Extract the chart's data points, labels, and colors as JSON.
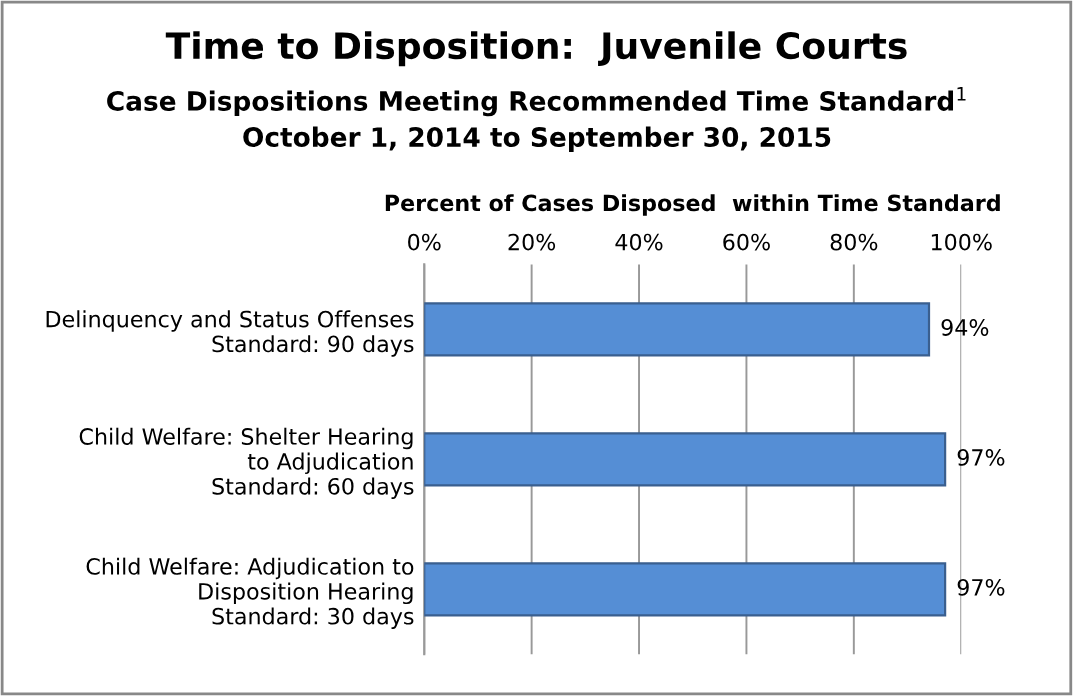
{
  "chart_data": {
    "type": "bar",
    "orientation": "horizontal",
    "title": "Time to Disposition:  Juvenile Courts",
    "subtitle": "Case Dispositions Meeting Recommended Time Standard$^{1}$\nOctober 1, 2014 to September 30, 2015",
    "xlabel": "Percent of Cases Disposed  within Time Standard",
    "categories": [
      "Delinquency and Status Offenses\nStandard: 90 days",
      "Child Welfare: Shelter Hearing\nto Adjudication\nStandard: 60 days",
      "Child Welfare: Adjudication to\nDisposition Hearing\nStandard: 30 days"
    ],
    "values": [
      94,
      97,
      97
    ],
    "color": "#558ed5",
    "value_labels": [
      "94%",
      "97%",
      "97%"
    ],
    "xlim": [
      0,
      100
    ],
    "xticks": [
      {
        "value": 0,
        "label": "0%"
      },
      {
        "value": 20,
        "label": "20%"
      },
      {
        "value": 40,
        "label": "40%"
      },
      {
        "value": 60,
        "label": "60%"
      },
      {
        "value": 80,
        "label": "80%"
      },
      {
        "value": 100,
        "label": "100%"
      }
    ],
    "grid": "x",
    "legend": false
  }
}
